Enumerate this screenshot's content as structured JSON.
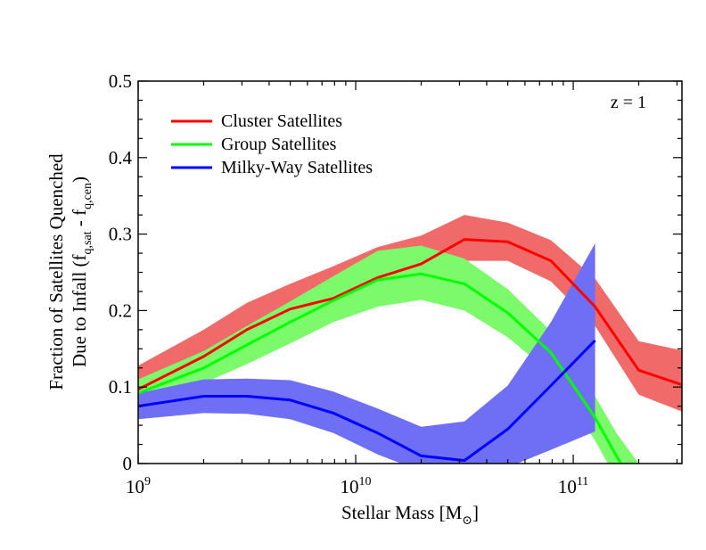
{
  "chart_data": {
    "type": "line",
    "title": "",
    "annotation": "z = 1",
    "xlabel": {
      "main": "Stellar Mass [M",
      "sub": "⊙",
      "close": "]"
    },
    "ylabel": {
      "line1": "Fraction of Satellites Quenched",
      "line2_main": "Due to Infall (f",
      "line2_sub1": "q,sat",
      "line2_mid": " - f",
      "line2_sub2": "q,cen",
      "line2_close": ")"
    },
    "x_scale": "log",
    "xlim": [
      1000000000.0,
      316000000000.0
    ],
    "ylim": [
      0,
      0.5
    ],
    "x_ticks": [
      {
        "value": 1000000000.0,
        "base": "10",
        "exp": "9"
      },
      {
        "value": 10000000000.0,
        "base": "10",
        "exp": "10"
      },
      {
        "value": 100000000000.0,
        "base": "10",
        "exp": "11"
      }
    ],
    "y_ticks": [
      "0",
      "0.1",
      "0.2",
      "0.3",
      "0.4",
      "0.5"
    ],
    "legend_position": "top-left",
    "series": [
      {
        "name": "Cluster Satellites",
        "color": "#ff0000",
        "band_color": "#f06a6a",
        "x": [
          1000000000.0,
          2000000000.0,
          3160000000.0,
          5000000000.0,
          7900000000.0,
          12600000000.0,
          20000000000.0,
          31600000000.0,
          50000000000.0,
          79000000000.0,
          126000000000.0,
          200000000000.0,
          316000000000.0
        ],
        "y": [
          0.097,
          0.14,
          0.175,
          0.202,
          0.216,
          0.243,
          0.261,
          0.293,
          0.29,
          0.265,
          0.205,
          0.122,
          0.103
        ],
        "lo": [
          0.085,
          0.118,
          0.15,
          0.175,
          0.2,
          0.225,
          0.24,
          0.265,
          0.265,
          0.238,
          0.18,
          0.09,
          0.068
        ],
        "hi": [
          0.128,
          0.175,
          0.21,
          0.235,
          0.258,
          0.283,
          0.298,
          0.325,
          0.315,
          0.292,
          0.242,
          0.16,
          0.148
        ]
      },
      {
        "name": "Group Satellites",
        "color": "#00ff00",
        "band_color": "#7cfa6b",
        "x": [
          1000000000.0,
          2000000000.0,
          3160000000.0,
          5000000000.0,
          7900000000.0,
          12600000000.0,
          20000000000.0,
          31600000000.0,
          50000000000.0,
          79000000000.0,
          126000000000.0,
          158000000000.0,
          200000000000.0
        ],
        "y": [
          0.092,
          0.125,
          0.155,
          0.185,
          0.213,
          0.24,
          0.248,
          0.235,
          0.197,
          0.145,
          0.06,
          0.01,
          -0.04
        ],
        "lo": [
          0.08,
          0.105,
          0.13,
          0.157,
          0.185,
          0.205,
          0.214,
          0.2,
          0.165,
          0.118,
          0.03,
          -0.02,
          -0.08
        ],
        "hi": [
          0.11,
          0.147,
          0.18,
          0.212,
          0.245,
          0.278,
          0.285,
          0.268,
          0.228,
          0.173,
          0.088,
          0.04,
          0.0
        ]
      },
      {
        "name": "Milky-Way Satellites",
        "color": "#0000ff",
        "band_color": "#6f6ff5",
        "x": [
          1000000000.0,
          2000000000.0,
          3160000000.0,
          5000000000.0,
          7900000000.0,
          12600000000.0,
          20000000000.0,
          31600000000.0,
          50000000000.0,
          79000000000.0,
          126000000000.0
        ],
        "y": [
          0.075,
          0.088,
          0.088,
          0.083,
          0.066,
          0.04,
          0.01,
          0.004,
          0.045,
          0.102,
          0.161
        ],
        "lo": [
          0.058,
          0.066,
          0.065,
          0.058,
          0.04,
          0.012,
          -0.01,
          -0.01,
          -0.005,
          0.018,
          0.042
        ],
        "hi": [
          0.092,
          0.11,
          0.111,
          0.109,
          0.094,
          0.072,
          0.048,
          0.055,
          0.102,
          0.185,
          0.288
        ]
      }
    ]
  }
}
